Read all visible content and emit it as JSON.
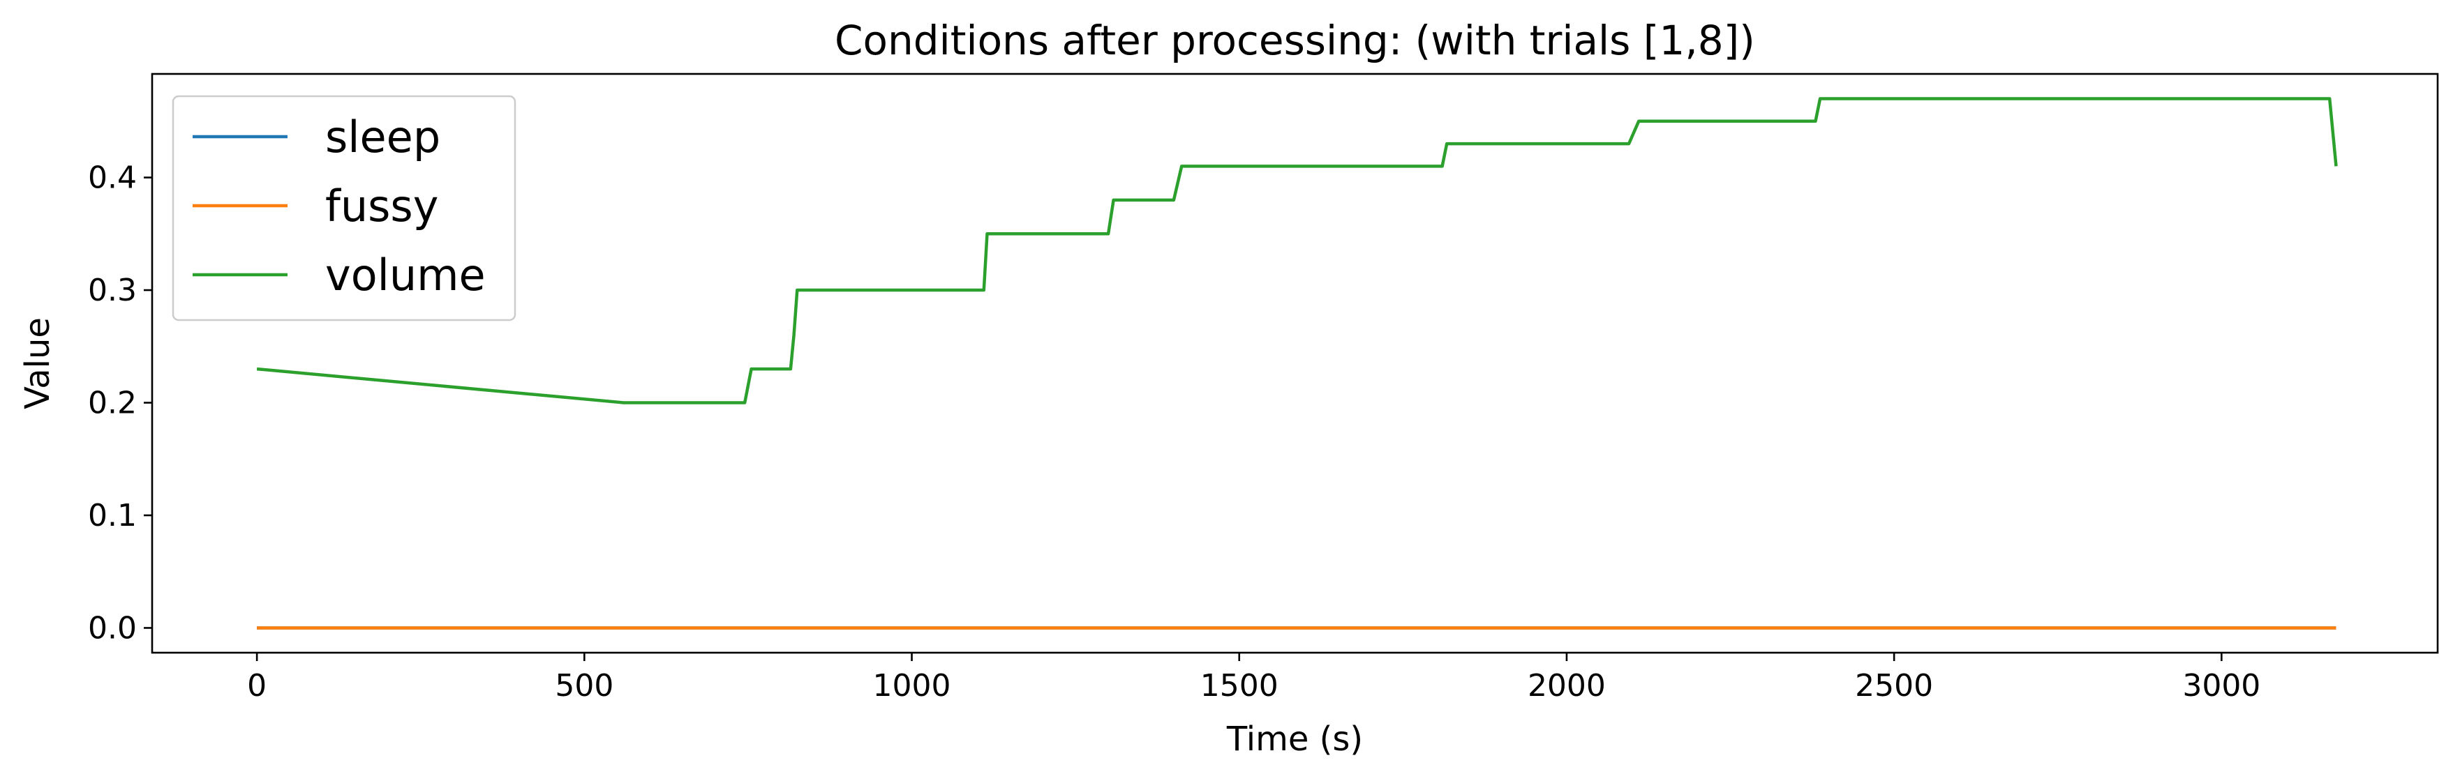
{
  "chart_data": {
    "type": "line",
    "title": "Conditions after processing: (with trials [1,8])",
    "xlabel": "Time (s)",
    "ylabel": "Value",
    "xlim": [
      -160,
      3330
    ],
    "ylim": [
      -0.022,
      0.492
    ],
    "xticks": [
      0,
      500,
      1000,
      1500,
      2000,
      2500,
      3000
    ],
    "xtick_labels": [
      "0",
      "500",
      "1000",
      "1500",
      "2000",
      "2500",
      "3000"
    ],
    "yticks": [
      0.0,
      0.1,
      0.2,
      0.3,
      0.4
    ],
    "ytick_labels": [
      "0.0",
      "0.1",
      "0.2",
      "0.3",
      "0.4"
    ],
    "grid": false,
    "legend_position": "top-left",
    "series": [
      {
        "name": "sleep",
        "color": "#1f77b4",
        "x": [
          0,
          3175
        ],
        "y": [
          0.0,
          0.0
        ]
      },
      {
        "name": "fussy",
        "color": "#ff7f0e",
        "x": [
          0,
          3175
        ],
        "y": [
          0.0,
          0.0
        ]
      },
      {
        "name": "volume",
        "color": "#2ca02c",
        "x": [
          0,
          560,
          745,
          755,
          815,
          820,
          825,
          1110,
          1115,
          1300,
          1308,
          1400,
          1412,
          1810,
          1817,
          2095,
          2110,
          2380,
          2387,
          3165,
          3175
        ],
        "y": [
          0.23,
          0.2,
          0.2,
          0.23,
          0.23,
          0.26,
          0.3,
          0.3,
          0.35,
          0.35,
          0.38,
          0.38,
          0.41,
          0.41,
          0.43,
          0.43,
          0.45,
          0.45,
          0.47,
          0.47,
          0.41
        ]
      }
    ]
  }
}
